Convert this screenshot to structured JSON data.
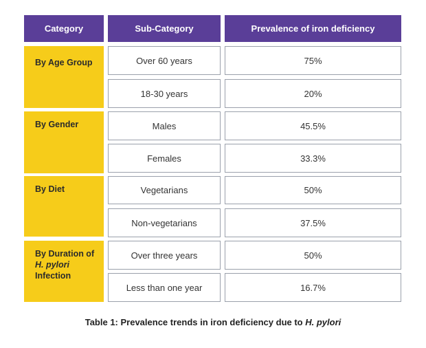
{
  "table": {
    "headers": [
      "Category",
      "Sub-Category",
      "Prevalence of iron deficiency"
    ],
    "groups": [
      {
        "category_lines": [
          "By Age Group"
        ],
        "rows": [
          {
            "sub": "Over 60 years",
            "value": "75%"
          },
          {
            "sub": "18-30 years",
            "value": "20%"
          }
        ]
      },
      {
        "category_lines": [
          "By Gender"
        ],
        "rows": [
          {
            "sub": "Males",
            "value": "45.5%"
          },
          {
            "sub": "Females",
            "value": "33.3%"
          }
        ]
      },
      {
        "category_lines": [
          "By Diet"
        ],
        "rows": [
          {
            "sub": "Vegetarians",
            "value": "50%"
          },
          {
            "sub": "Non-vegetarians",
            "value": "37.5%"
          }
        ]
      },
      {
        "category_lines": [
          "By Duration of",
          "H. pylori",
          "Infection"
        ],
        "rows": [
          {
            "sub": "Over three years",
            "value": "50%"
          },
          {
            "sub": "Less than one year",
            "value": "16.7%"
          }
        ]
      }
    ]
  },
  "caption": {
    "prefix": "Table 1: Prevalence trends in iron deficiency due to ",
    "italic": "H. pylori"
  },
  "colors": {
    "header_bg": "#5a3e98",
    "category_bg": "#f6cc1a",
    "cell_border": "#9aa0ab"
  }
}
